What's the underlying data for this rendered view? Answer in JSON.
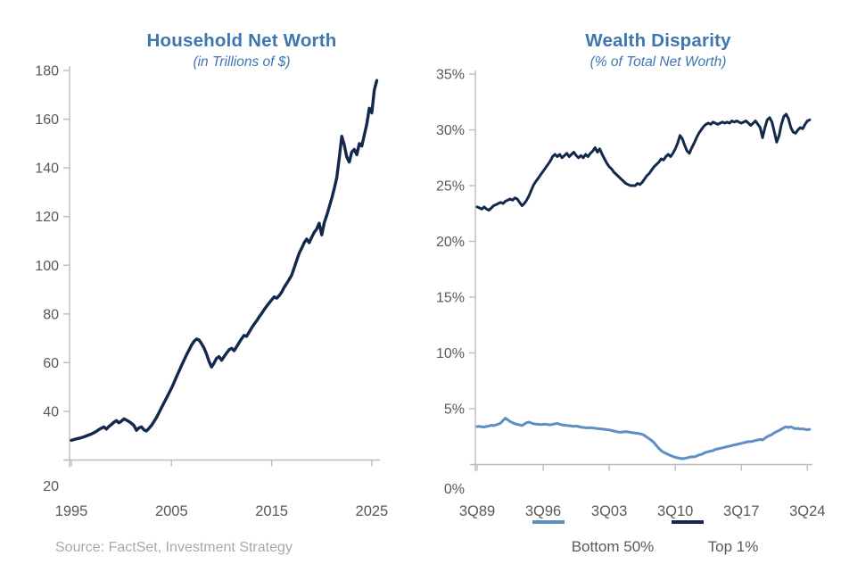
{
  "source_note": "Source: FactSet, Investment Strategy",
  "colors": {
    "title_blue": "#3e76b0",
    "navy": "#13294b",
    "light_blue": "#5e8fc3",
    "axis_gray": "#bdbdbd",
    "tick_text_gray": "#595959",
    "source_gray": "#a9a9a9"
  },
  "chart_data": [
    {
      "type": "line",
      "title": "Household Net Worth",
      "subtitle": "(in Trillions of $)",
      "ylabel": "Trillions of $",
      "ylim": [
        20,
        180
      ],
      "grid": false,
      "legend_position": "none",
      "y_axis": {
        "tick_labels": [
          "180",
          "160",
          "140",
          "120",
          "100",
          "80",
          "60",
          "40",
          "20"
        ],
        "tick_values": [
          180,
          160,
          140,
          120,
          100,
          80,
          60,
          40,
          20
        ]
      },
      "x_axis": {
        "tick_labels": [
          "1995",
          "2005",
          "2015",
          "2025"
        ],
        "tick_values": [
          1995,
          2005,
          2015,
          2025
        ]
      },
      "series": [
        {
          "name": "Household Net Worth",
          "color": "#13294b",
          "width": 3.4,
          "start": 1995.0,
          "step": 0.25,
          "values": [
            28.1,
            28.4,
            28.7,
            28.9,
            29.2,
            29.5,
            29.9,
            30.3,
            30.7,
            31.2,
            31.8,
            32.5,
            33.1,
            33.6,
            32.7,
            33.8,
            34.6,
            35.5,
            36.2,
            35.3,
            36.0,
            36.9,
            36.4,
            35.8,
            35.1,
            34.2,
            32.2,
            33.2,
            33.6,
            32.4,
            31.9,
            33.0,
            34.2,
            35.8,
            37.5,
            39.5,
            41.5,
            43.5,
            45.5,
            47.5,
            49.5,
            51.8,
            54.2,
            56.5,
            58.8,
            61.0,
            63.2,
            65.2,
            67.2,
            68.8,
            69.7,
            69.3,
            67.8,
            66.0,
            63.5,
            60.5,
            58.2,
            59.8,
            61.8,
            62.5,
            61.0,
            62.5,
            64.0,
            65.3,
            65.9,
            64.9,
            66.5,
            68.2,
            69.8,
            71.2,
            70.8,
            72.5,
            74.2,
            75.8,
            77.2,
            78.8,
            80.2,
            81.8,
            83.2,
            84.5,
            85.8,
            87.0,
            86.5,
            87.5,
            89.0,
            90.9,
            92.5,
            94.2,
            96.0,
            99.0,
            102.0,
            105.0,
            107.0,
            109.3,
            110.8,
            109.3,
            111.5,
            113.5,
            114.9,
            117.3,
            112.5,
            117.5,
            120.5,
            124.0,
            127.5,
            131.5,
            136.0,
            144.0,
            153.0,
            149.5,
            144.5,
            142.4,
            146.5,
            147.6,
            145.4,
            150.0,
            149.0,
            153.5,
            158.0,
            164.5,
            162.6,
            172.0,
            175.9
          ]
        }
      ]
    },
    {
      "type": "line",
      "title": "Wealth Disparity",
      "subtitle": "(% of Total Net Worth)",
      "ylabel": "% of Total Net Worth",
      "ylim": [
        0,
        35
      ],
      "grid": false,
      "legend_position": "bottom",
      "y_axis": {
        "tick_labels": [
          "35%",
          "30%",
          "25%",
          "20%",
          "15%",
          "10%",
          "5%",
          "0%"
        ],
        "tick_values": [
          35,
          30,
          25,
          20,
          15,
          10,
          5,
          0
        ]
      },
      "x_axis": {
        "tick_labels": [
          "3Q89",
          "3Q96",
          "3Q03",
          "3Q10",
          "3Q17",
          "3Q24"
        ],
        "tick_values": [
          1989.75,
          1996.75,
          2003.75,
          2010.75,
          2017.75,
          2024.75
        ]
      },
      "legend": [
        {
          "label": "Bottom 50%",
          "color": "#5e8fc3"
        },
        {
          "label": "Top 1%",
          "color": "#13294b"
        }
      ],
      "series": [
        {
          "name": "Bottom 50%",
          "color": "#5e8fc3",
          "width": 3,
          "start": 1989.75,
          "step": 0.25,
          "values": [
            3.4,
            3.42,
            3.38,
            3.35,
            3.42,
            3.45,
            3.52,
            3.48,
            3.55,
            3.62,
            3.72,
            3.95,
            4.15,
            4.0,
            3.85,
            3.75,
            3.65,
            3.6,
            3.55,
            3.5,
            3.62,
            3.75,
            3.8,
            3.72,
            3.65,
            3.62,
            3.6,
            3.58,
            3.6,
            3.62,
            3.58,
            3.55,
            3.6,
            3.65,
            3.68,
            3.62,
            3.55,
            3.52,
            3.5,
            3.48,
            3.45,
            3.42,
            3.45,
            3.4,
            3.35,
            3.32,
            3.3,
            3.28,
            3.3,
            3.28,
            3.25,
            3.22,
            3.2,
            3.18,
            3.15,
            3.12,
            3.1,
            3.05,
            3.0,
            2.95,
            2.9,
            2.9,
            2.92,
            2.95,
            2.92,
            2.88,
            2.85,
            2.82,
            2.8,
            2.75,
            2.7,
            2.6,
            2.45,
            2.3,
            2.15,
            1.95,
            1.7,
            1.45,
            1.25,
            1.1,
            1.0,
            0.9,
            0.8,
            0.72,
            0.65,
            0.6,
            0.55,
            0.52,
            0.55,
            0.6,
            0.65,
            0.7,
            0.68,
            0.75,
            0.85,
            0.9,
            1.0,
            1.1,
            1.15,
            1.2,
            1.25,
            1.35,
            1.4,
            1.45,
            1.5,
            1.55,
            1.6,
            1.65,
            1.7,
            1.75,
            1.8,
            1.85,
            1.9,
            1.95,
            2.0,
            2.05,
            2.05,
            2.1,
            2.15,
            2.2,
            2.25,
            2.2,
            2.35,
            2.5,
            2.6,
            2.7,
            2.85,
            2.95,
            3.05,
            3.18,
            3.3,
            3.38,
            3.32,
            3.38,
            3.28,
            3.2,
            3.24,
            3.18,
            3.2,
            3.15,
            3.12,
            3.15
          ]
        },
        {
          "name": "Top 1%",
          "color": "#13294b",
          "width": 3,
          "start": 1989.75,
          "step": 0.25,
          "values": [
            23.1,
            23.0,
            22.9,
            23.1,
            22.9,
            22.8,
            23.0,
            23.2,
            23.3,
            23.4,
            23.5,
            23.4,
            23.6,
            23.7,
            23.8,
            23.7,
            23.9,
            23.8,
            23.5,
            23.2,
            23.4,
            23.7,
            24.1,
            24.6,
            25.1,
            25.4,
            25.7,
            26.0,
            26.3,
            26.6,
            26.9,
            27.2,
            27.6,
            27.8,
            27.6,
            27.8,
            27.5,
            27.7,
            27.9,
            27.6,
            27.8,
            28.0,
            27.7,
            27.5,
            27.7,
            27.5,
            27.8,
            27.6,
            27.9,
            28.1,
            28.4,
            28.0,
            28.3,
            27.8,
            27.4,
            27.0,
            26.7,
            26.5,
            26.2,
            26.0,
            25.8,
            25.6,
            25.4,
            25.2,
            25.1,
            25.0,
            25.0,
            25.0,
            25.2,
            25.1,
            25.3,
            25.6,
            25.9,
            26.1,
            26.4,
            26.7,
            26.9,
            27.1,
            27.4,
            27.3,
            27.6,
            27.8,
            27.6,
            27.9,
            28.3,
            28.8,
            29.5,
            29.2,
            28.6,
            28.1,
            27.9,
            28.4,
            28.8,
            29.3,
            29.7,
            30.0,
            30.3,
            30.5,
            30.6,
            30.5,
            30.7,
            30.6,
            30.5,
            30.6,
            30.7,
            30.6,
            30.7,
            30.6,
            30.8,
            30.7,
            30.8,
            30.7,
            30.6,
            30.7,
            30.8,
            30.6,
            30.4,
            30.6,
            30.8,
            30.5,
            30.2,
            29.3,
            30.2,
            30.9,
            31.1,
            30.7,
            29.8,
            28.9,
            29.5,
            30.5,
            31.2,
            31.4,
            31.0,
            30.2,
            29.8,
            29.7,
            30.0,
            30.2,
            30.1,
            30.5,
            30.8,
            30.9
          ]
        }
      ]
    }
  ]
}
